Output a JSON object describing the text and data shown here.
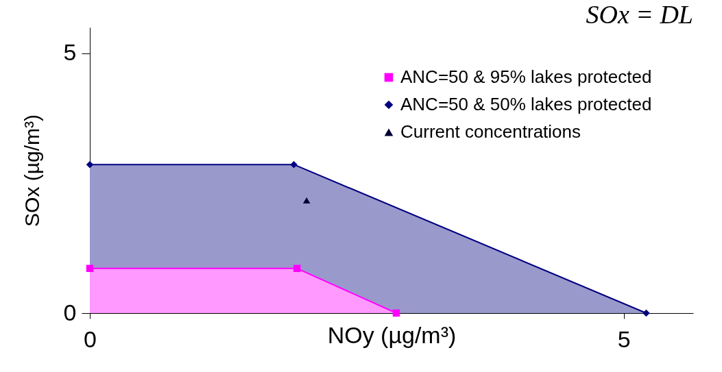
{
  "chart_data": {
    "type": "area",
    "title": "SOx = DL",
    "xlabel": "NOy (µg/m³)",
    "ylabel": "SOx (µg/m³)",
    "xlim": [
      0,
      5.65
    ],
    "ylim": [
      0,
      5.5
    ],
    "xticks": [
      0,
      5
    ],
    "yticks": [
      0,
      5
    ],
    "grid": false,
    "legend": "top right",
    "series": [
      {
        "name": "ANC=50 & 95% lakes protected",
        "type": "area",
        "color": "#ff00ff",
        "marker": "square",
        "x": [
          0,
          1.94,
          2.87
        ],
        "values": [
          0.86,
          0.86,
          0
        ]
      },
      {
        "name": "ANC=50 & 50% lakes protected",
        "type": "area",
        "color": "#000080",
        "marker": "diamond",
        "x": [
          0,
          1.91,
          5.21
        ],
        "values": [
          2.86,
          2.86,
          0
        ]
      },
      {
        "name": "Current concentrations",
        "type": "scatter",
        "color": "#000033",
        "marker": "triangle",
        "x": [
          2.03
        ],
        "values": [
          2.17
        ]
      }
    ]
  }
}
